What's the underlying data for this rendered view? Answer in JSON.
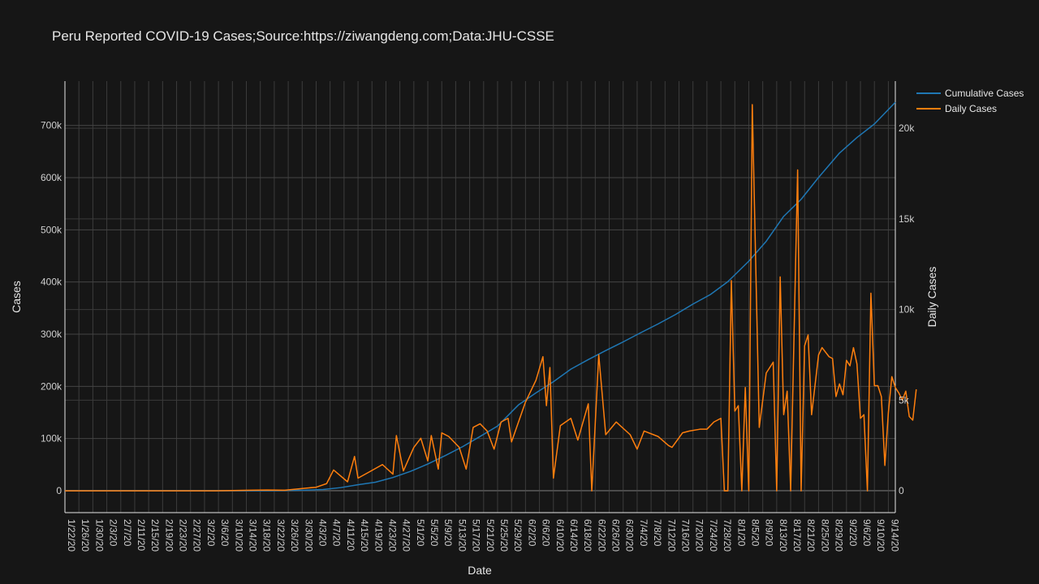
{
  "chart_data": {
    "type": "line",
    "title": "Peru Reported COVID-19 Cases;Source:https://ziwangdeng.com;Data:JHU-CSSE",
    "xlabel": "Date",
    "ylabel": "Cases",
    "y2label": "Daily Cases",
    "x_start": "2020-01-22",
    "x_end": "2020-09-16",
    "x_tick_labels": [
      "1/22/20",
      "1/26/20",
      "1/30/20",
      "2/3/20",
      "2/7/20",
      "2/11/20",
      "2/15/20",
      "2/19/20",
      "2/23/20",
      "2/27/20",
      "3/2/20",
      "3/6/20",
      "3/10/20",
      "3/14/20",
      "3/18/20",
      "3/22/20",
      "3/26/20",
      "3/30/20",
      "4/3/20",
      "4/7/20",
      "4/11/20",
      "4/15/20",
      "4/19/20",
      "4/23/20",
      "4/27/20",
      "5/1/20",
      "5/5/20",
      "5/9/20",
      "5/13/20",
      "5/17/20",
      "5/21/20",
      "5/25/20",
      "5/29/20",
      "6/2/20",
      "6/6/20",
      "6/10/20",
      "6/14/20",
      "6/18/20",
      "6/22/20",
      "6/26/20",
      "6/30/20",
      "7/4/20",
      "7/8/20",
      "7/12/20",
      "7/16/20",
      "7/20/20",
      "7/24/20",
      "7/28/20",
      "8/1/20",
      "8/5/20",
      "8/9/20",
      "8/13/20",
      "8/17/20",
      "8/21/20",
      "8/25/20",
      "8/29/20",
      "9/2/20",
      "9/6/20",
      "9/10/20",
      "9/14/20"
    ],
    "y_ticks": [
      0,
      100000,
      200000,
      300000,
      400000,
      500000,
      600000,
      700000
    ],
    "y_tick_labels": [
      "0",
      "100k",
      "200k",
      "300k",
      "400k",
      "500k",
      "600k",
      "700k"
    ],
    "y2_ticks": [
      0,
      5000,
      10000,
      15000,
      20000
    ],
    "y2_tick_labels": [
      "0",
      "5k",
      "10k",
      "15k",
      "20k"
    ],
    "ylim": [
      -42000,
      785000
    ],
    "y2lim": [
      -1200,
      22600
    ],
    "legend_position": "top-right",
    "grid": true,
    "series": [
      {
        "name": "Cumulative Cases",
        "axis": "left",
        "color": "#1f77b4",
        "points": [
          [
            "2020-01-22",
            0
          ],
          [
            "2020-03-05",
            0
          ],
          [
            "2020-03-15",
            43
          ],
          [
            "2020-03-20",
            234
          ],
          [
            "2020-03-25",
            480
          ],
          [
            "2020-03-31",
            1065
          ],
          [
            "2020-04-05",
            2281
          ],
          [
            "2020-04-10",
            5897
          ],
          [
            "2020-04-15",
            11475
          ],
          [
            "2020-04-20",
            16325
          ],
          [
            "2020-04-25",
            25331
          ],
          [
            "2020-04-30",
            36976
          ],
          [
            "2020-05-05",
            51189
          ],
          [
            "2020-05-10",
            67307
          ],
          [
            "2020-05-15",
            84495
          ],
          [
            "2020-05-20",
            104020
          ],
          [
            "2020-05-25",
            123979
          ],
          [
            "2020-05-31",
            164476
          ],
          [
            "2020-06-05",
            187400
          ],
          [
            "2020-06-10",
            208823
          ],
          [
            "2020-06-15",
            232992
          ],
          [
            "2020-06-20",
            251338
          ],
          [
            "2020-06-25",
            268602
          ],
          [
            "2020-06-30",
            285213
          ],
          [
            "2020-07-05",
            302718
          ],
          [
            "2020-07-10",
            319646
          ],
          [
            "2020-07-15",
            337724
          ],
          [
            "2020-07-20",
            357681
          ],
          [
            "2020-07-25",
            375961
          ],
          [
            "2020-07-30",
            400683
          ],
          [
            "2020-08-05",
            439890
          ],
          [
            "2020-08-10",
            478024
          ],
          [
            "2020-08-15",
            525803
          ],
          [
            "2020-08-20",
            558420
          ],
          [
            "2020-08-25",
            600438
          ],
          [
            "2020-08-31",
            647166
          ],
          [
            "2020-09-05",
            676848
          ],
          [
            "2020-09-10",
            702776
          ],
          [
            "2020-09-16",
            744400
          ]
        ]
      },
      {
        "name": "Daily Cases",
        "axis": "right",
        "color": "#ff7f0e",
        "points": [
          [
            "2020-01-22",
            0
          ],
          [
            "2020-03-05",
            0
          ],
          [
            "2020-03-15",
            36
          ],
          [
            "2020-03-20",
            48
          ],
          [
            "2020-03-25",
            38
          ],
          [
            "2020-03-31",
            150
          ],
          [
            "2020-04-03",
            200
          ],
          [
            "2020-04-06",
            400
          ],
          [
            "2020-04-08",
            1150
          ],
          [
            "2020-04-12",
            500
          ],
          [
            "2020-04-14",
            1900
          ],
          [
            "2020-04-15",
            700
          ],
          [
            "2020-04-18",
            1020
          ],
          [
            "2020-04-22",
            1450
          ],
          [
            "2020-04-25",
            920
          ],
          [
            "2020-04-26",
            3050
          ],
          [
            "2020-04-28",
            1100
          ],
          [
            "2020-05-01",
            2400
          ],
          [
            "2020-05-03",
            2900
          ],
          [
            "2020-05-05",
            1650
          ],
          [
            "2020-05-06",
            3050
          ],
          [
            "2020-05-08",
            1200
          ],
          [
            "2020-05-09",
            3200
          ],
          [
            "2020-05-11",
            3000
          ],
          [
            "2020-05-14",
            2400
          ],
          [
            "2020-05-16",
            1200
          ],
          [
            "2020-05-18",
            3500
          ],
          [
            "2020-05-20",
            3700
          ],
          [
            "2020-05-22",
            3300
          ],
          [
            "2020-05-24",
            2300
          ],
          [
            "2020-05-26",
            3800
          ],
          [
            "2020-05-28",
            4000
          ],
          [
            "2020-05-29",
            2700
          ],
          [
            "2020-05-31",
            3800
          ],
          [
            "2020-06-02",
            4900
          ],
          [
            "2020-06-05",
            6100
          ],
          [
            "2020-06-07",
            7400
          ],
          [
            "2020-06-08",
            4700
          ],
          [
            "2020-06-09",
            6800
          ],
          [
            "2020-06-10",
            700
          ],
          [
            "2020-06-12",
            3600
          ],
          [
            "2020-06-15",
            4000
          ],
          [
            "2020-06-17",
            2800
          ],
          [
            "2020-06-20",
            4800
          ],
          [
            "2020-06-21",
            0
          ],
          [
            "2020-06-23",
            7500
          ],
          [
            "2020-06-25",
            3100
          ],
          [
            "2020-06-28",
            3800
          ],
          [
            "2020-07-02",
            3100
          ],
          [
            "2020-07-04",
            2300
          ],
          [
            "2020-07-06",
            3300
          ],
          [
            "2020-07-10",
            3000
          ],
          [
            "2020-07-13",
            2500
          ],
          [
            "2020-07-14",
            2400
          ],
          [
            "2020-07-17",
            3200
          ],
          [
            "2020-07-19",
            3300
          ],
          [
            "2020-07-22",
            3400
          ],
          [
            "2020-07-24",
            3400
          ],
          [
            "2020-07-26",
            3800
          ],
          [
            "2020-07-28",
            4000
          ],
          [
            "2020-07-29",
            0
          ],
          [
            "2020-07-30",
            0
          ],
          [
            "2020-07-31",
            11600
          ],
          [
            "2020-08-01",
            4400
          ],
          [
            "2020-08-02",
            4700
          ],
          [
            "2020-08-03",
            0
          ],
          [
            "2020-08-04",
            5700
          ],
          [
            "2020-08-05",
            0
          ],
          [
            "2020-08-06",
            21300
          ],
          [
            "2020-08-08",
            3500
          ],
          [
            "2020-08-10",
            6500
          ],
          [
            "2020-08-12",
            7100
          ],
          [
            "2020-08-13",
            0
          ],
          [
            "2020-08-14",
            11800
          ],
          [
            "2020-08-15",
            4200
          ],
          [
            "2020-08-16",
            5500
          ],
          [
            "2020-08-17",
            0
          ],
          [
            "2020-08-19",
            17700
          ],
          [
            "2020-08-20",
            0
          ],
          [
            "2020-08-21",
            8000
          ],
          [
            "2020-08-22",
            8600
          ],
          [
            "2020-08-23",
            4200
          ],
          [
            "2020-08-25",
            7500
          ],
          [
            "2020-08-26",
            7900
          ],
          [
            "2020-08-28",
            7400
          ],
          [
            "2020-08-29",
            7300
          ],
          [
            "2020-08-30",
            5200
          ],
          [
            "2020-08-31",
            5900
          ],
          [
            "2020-09-01",
            5300
          ],
          [
            "2020-09-02",
            7200
          ],
          [
            "2020-09-03",
            6900
          ],
          [
            "2020-09-04",
            7900
          ],
          [
            "2020-09-05",
            7000
          ],
          [
            "2020-09-06",
            4000
          ],
          [
            "2020-09-07",
            4200
          ],
          [
            "2020-09-08",
            0
          ],
          [
            "2020-09-09",
            10900
          ],
          [
            "2020-09-10",
            5800
          ],
          [
            "2020-09-11",
            5800
          ],
          [
            "2020-09-12",
            5200
          ],
          [
            "2020-09-13",
            1400
          ],
          [
            "2020-09-14",
            4300
          ],
          [
            "2020-09-15",
            6300
          ],
          [
            "2020-09-16",
            5700
          ],
          [
            "2020-09-17",
            5400
          ],
          [
            "2020-09-18",
            5000
          ],
          [
            "2020-09-19",
            5500
          ],
          [
            "2020-09-20",
            4100
          ],
          [
            "2020-09-21",
            3900
          ],
          [
            "2020-09-22",
            5600
          ]
        ]
      }
    ]
  }
}
